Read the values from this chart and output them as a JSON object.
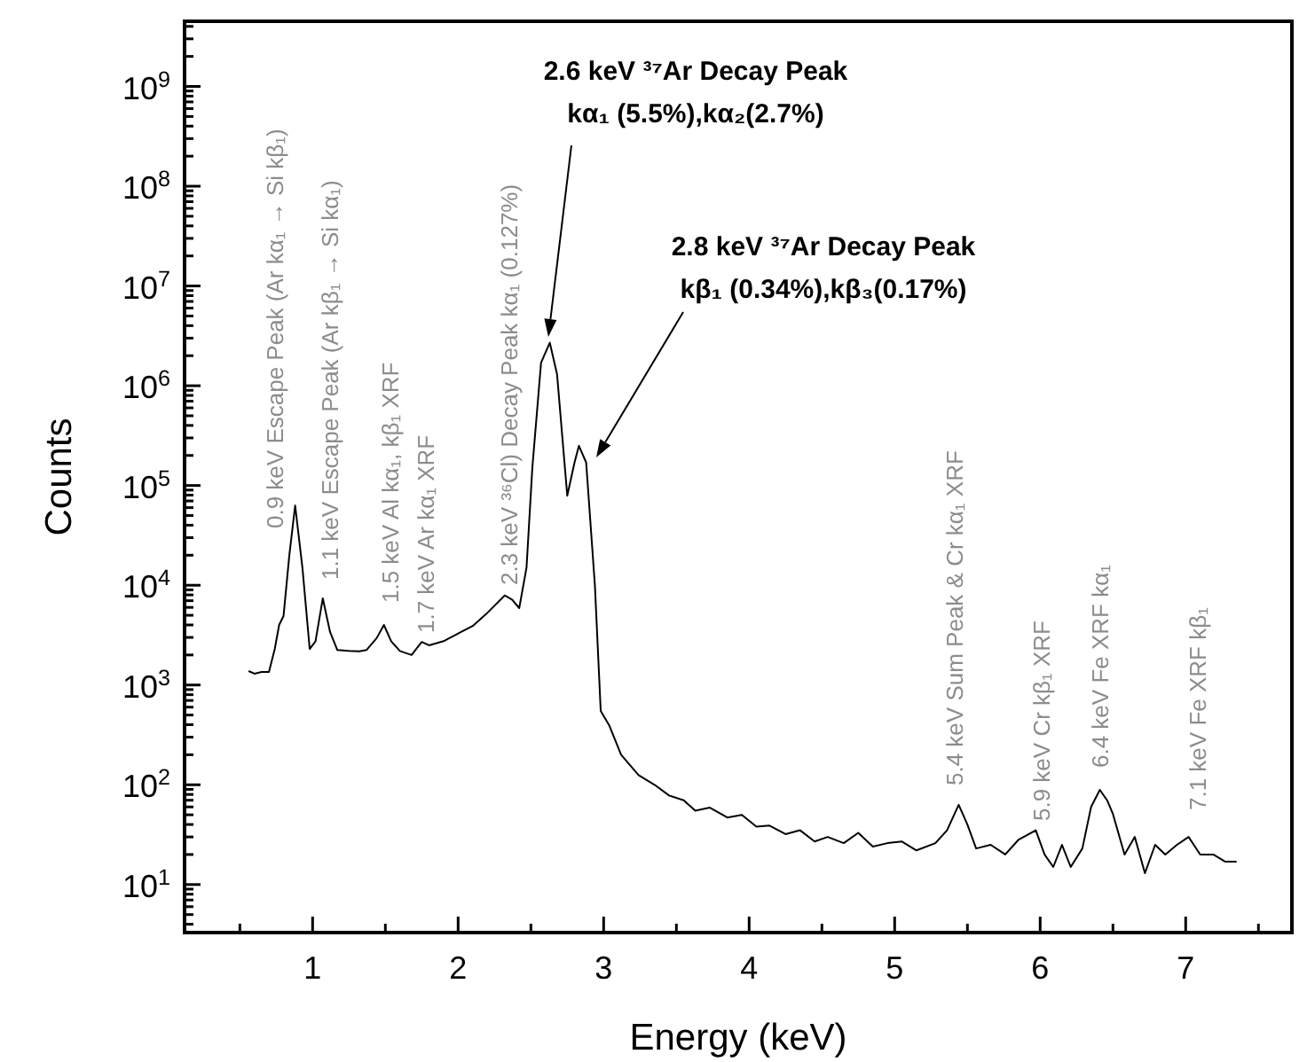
{
  "chart_data": {
    "type": "line",
    "xlabel": "Energy (keV)",
    "ylabel": "Counts",
    "log": "y",
    "grid": false,
    "marker": "none",
    "line_style": "solid",
    "xlim": [
      0.12,
      7.73
    ],
    "ylim": [
      3.3,
      4500000000
    ],
    "xticks": [
      {
        "value": 0.5,
        "label": null
      },
      1,
      {
        "value": 1.5,
        "label": null
      },
      2,
      {
        "value": 2.5,
        "label": null
      },
      3,
      {
        "value": 3.5,
        "label": null
      },
      4,
      {
        "value": 4.5,
        "label": null
      },
      5,
      {
        "value": 5.5,
        "label": null
      },
      6,
      {
        "value": 6.5,
        "label": null
      },
      7,
      {
        "value": 7.5,
        "label": null
      }
    ],
    "yticks": [
      {
        "value": 10,
        "label": "10$^{1}$"
      },
      {
        "value": 100,
        "label": "10$^{2}$"
      },
      {
        "value": 1000,
        "label": "10$^{3}$"
      },
      {
        "value": 10000,
        "label": "10$^{4}$"
      },
      {
        "value": 100000,
        "label": "10$^{5}$"
      },
      {
        "value": 1000000,
        "label": "10$^{6}$"
      },
      {
        "value": 10000000,
        "label": "10$^{7}$"
      },
      {
        "value": 100000000,
        "label": "10$^{8}$"
      },
      {
        "value": 1000000000,
        "label": "10$^{9}$"
      },
      {
        "value": 4,
        "label": null
      },
      {
        "value": 5,
        "label": null
      },
      {
        "value": 6,
        "label": null
      },
      {
        "value": 7,
        "label": null
      },
      {
        "value": 8,
        "label": null
      },
      {
        "value": 9,
        "label": null
      },
      {
        "value": 20,
        "label": null
      },
      {
        "value": 30,
        "label": null
      },
      {
        "value": 40,
        "label": null
      },
      {
        "value": 50,
        "label": null
      },
      {
        "value": 60,
        "label": null
      },
      {
        "value": 70,
        "label": null
      },
      {
        "value": 80,
        "label": null
      },
      {
        "value": 90,
        "label": null
      },
      {
        "value": 200,
        "label": null
      },
      {
        "value": 300,
        "label": null
      },
      {
        "value": 400,
        "label": null
      },
      {
        "value": 500,
        "label": null
      },
      {
        "value": 600,
        "label": null
      },
      {
        "value": 700,
        "label": null
      },
      {
        "value": 800,
        "label": null
      },
      {
        "value": 900,
        "label": null
      },
      {
        "value": 2000,
        "label": null
      },
      {
        "value": 3000,
        "label": null
      },
      {
        "value": 4000,
        "label": null
      },
      {
        "value": 5000,
        "label": null
      },
      {
        "value": 6000,
        "label": null
      },
      {
        "value": 7000,
        "label": null
      },
      {
        "value": 8000,
        "label": null
      },
      {
        "value": 9000,
        "label": null
      },
      {
        "value": 20000,
        "label": null
      },
      {
        "value": 30000,
        "label": null
      },
      {
        "value": 40000,
        "label": null
      },
      {
        "value": 50000,
        "label": null
      },
      {
        "value": 60000,
        "label": null
      },
      {
        "value": 70000,
        "label": null
      },
      {
        "value": 80000,
        "label": null
      },
      {
        "value": 90000,
        "label": null
      },
      {
        "value": 200000,
        "label": null
      },
      {
        "value": 300000,
        "label": null
      },
      {
        "value": 400000,
        "label": null
      },
      {
        "value": 500000,
        "label": null
      },
      {
        "value": 600000,
        "label": null
      },
      {
        "value": 700000,
        "label": null
      },
      {
        "value": 800000,
        "label": null
      },
      {
        "value": 900000,
        "label": null
      },
      {
        "value": 2000000,
        "label": null
      },
      {
        "value": 3000000,
        "label": null
      },
      {
        "value": 4000000,
        "label": null
      },
      {
        "value": 5000000,
        "label": null
      },
      {
        "value": 6000000,
        "label": null
      },
      {
        "value": 7000000,
        "label": null
      },
      {
        "value": 8000000,
        "label": null
      },
      {
        "value": 9000000,
        "label": null
      },
      {
        "value": 20000000,
        "label": null
      },
      {
        "value": 30000000,
        "label": null
      },
      {
        "value": 40000000,
        "label": null
      },
      {
        "value": 50000000,
        "label": null
      },
      {
        "value": 60000000,
        "label": null
      },
      {
        "value": 70000000,
        "label": null
      },
      {
        "value": 80000000,
        "label": null
      },
      {
        "value": 90000000,
        "label": null
      },
      {
        "value": 200000000,
        "label": null
      },
      {
        "value": 300000000,
        "label": null
      },
      {
        "value": 400000000,
        "label": null
      },
      {
        "value": 500000000,
        "label": null
      },
      {
        "value": 600000000,
        "label": null
      },
      {
        "value": 700000000,
        "label": null
      },
      {
        "value": 800000000,
        "label": null
      },
      {
        "value": 900000000,
        "label": null
      },
      {
        "value": 2000000000,
        "label": null
      },
      {
        "value": 3000000000,
        "label": null
      },
      {
        "value": 4000000000,
        "label": null
      }
    ],
    "series": [
      {
        "color": "#000000",
        "x": [
          0.56,
          0.6,
          0.65,
          0.7,
          0.74,
          0.77,
          0.8,
          0.84,
          0.88,
          0.93,
          0.98,
          1.02,
          1.07,
          1.12,
          1.17,
          1.25,
          1.32,
          1.37,
          1.44,
          1.49,
          1.54,
          1.6,
          1.68,
          1.75,
          1.8,
          1.9,
          2.02,
          2.1,
          2.19,
          2.32,
          2.37,
          2.42,
          2.47,
          2.51,
          2.57,
          2.63,
          2.68,
          2.75,
          2.8,
          2.83,
          2.88,
          2.94,
          2.98,
          3.04,
          3.12,
          3.24,
          3.35,
          3.45,
          3.55,
          3.63,
          3.73,
          3.85,
          3.95,
          4.05,
          4.14,
          4.25,
          4.35,
          4.45,
          4.54,
          4.65,
          4.75,
          4.85,
          4.95,
          5.05,
          5.15,
          5.28,
          5.36,
          5.44,
          5.5,
          5.56,
          5.66,
          5.76,
          5.85,
          5.97,
          6.03,
          6.09,
          6.15,
          6.21,
          6.29,
          6.35,
          6.41,
          6.46,
          6.5,
          6.58,
          6.65,
          6.72,
          6.79,
          6.86,
          6.94,
          7.02,
          7.1,
          7.19,
          7.27,
          7.35
        ],
        "values": [
          1380,
          1300,
          1350,
          1350,
          2300,
          4000,
          4900,
          20000,
          63000,
          15000,
          2300,
          2750,
          7400,
          3400,
          2240,
          2200,
          2180,
          2240,
          2950,
          4000,
          2750,
          2190,
          2000,
          2700,
          2500,
          2750,
          3400,
          3900,
          5100,
          7900,
          7200,
          5900,
          15000,
          150000,
          1700000,
          2700000,
          1300000,
          79000,
          170000,
          250000,
          170000,
          10000,
          550,
          390,
          200,
          125,
          100,
          78,
          70,
          55,
          59,
          47,
          50,
          38,
          39,
          32,
          35,
          27,
          30,
          26,
          33,
          24,
          26,
          27,
          22,
          26,
          35,
          63,
          40,
          23,
          25,
          20,
          28,
          35,
          20,
          15,
          25,
          15,
          23,
          60,
          89,
          70,
          51,
          20,
          30,
          13,
          25,
          20,
          25,
          30,
          20,
          20,
          17,
          17
        ]
      }
    ],
    "annotations": [
      "2.6 keV ³⁷Ar Decay Peak\nkα₁ (5.5%),kα₂(2.7%)",
      "2.8 keV ³⁷Ar Decay Peak\nkβ₁ (0.34%),kβ₃(0.17%)",
      "0.9 keV Escape Peak (Ar kα₁ → Si kβ₁)",
      "1.1 keV Escape Peak (Ar kβ₁ → Si kα₁)",
      "1.5 keV Al kα₁, kβ₁ XRF",
      "1.7 keV Ar kα₁ XRF",
      "2.3 keV ³⁶Cl) Decay Peak kα₁ (0.127%)",
      "5.4 keV Sum Peak & Cr kα₁ XRF",
      "5.9 keV Cr kβ₁ XRF",
      "6.4 keV Fe XRF kα₁",
      "7.1 keV Fe XRF kβ₁"
    ]
  }
}
